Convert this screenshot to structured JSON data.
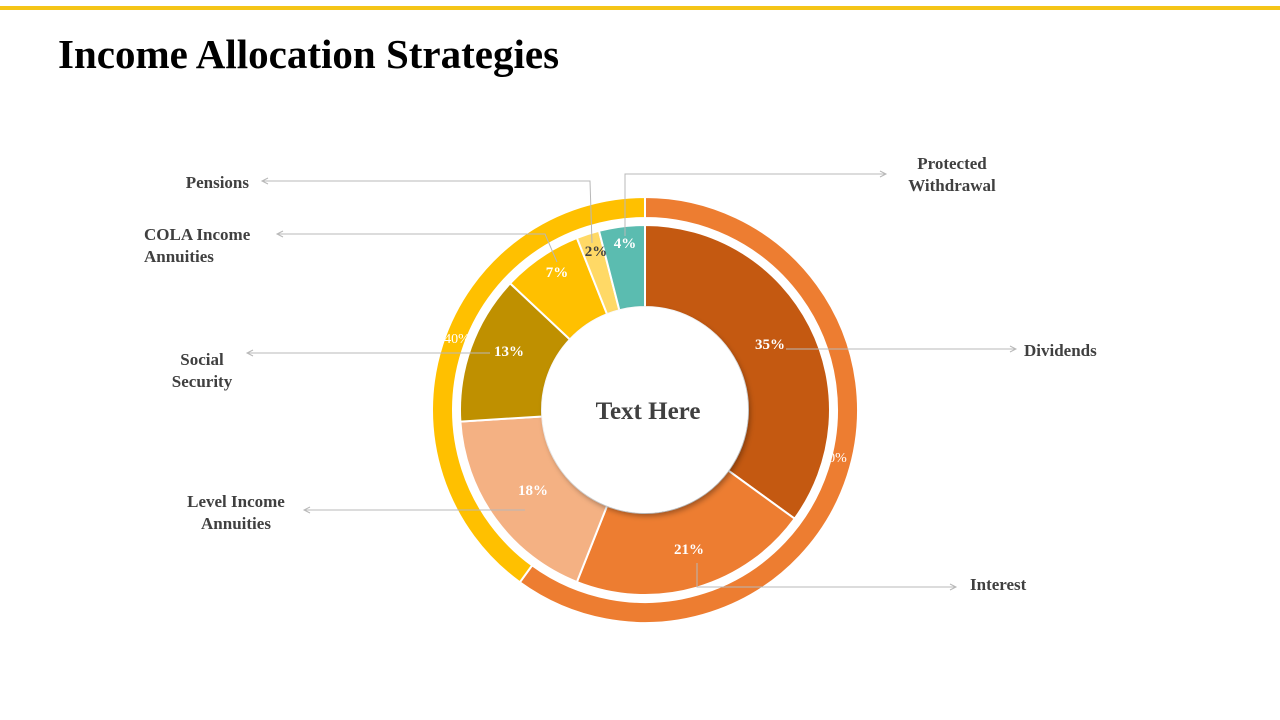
{
  "header": {
    "title": "Income Allocation Strategies",
    "accent_color": "#F5C518"
  },
  "chart_data": {
    "type": "doughnut",
    "center_text": "Text Here",
    "inner_series": [
      {
        "label": "Dividends",
        "value": 35,
        "value_label": "35%",
        "color": "#C45911"
      },
      {
        "label": "Interest",
        "value": 21,
        "value_label": "21%",
        "color": "#ED7D31"
      },
      {
        "label": "Level Income Annuities",
        "value": 18,
        "value_label": "18%",
        "color": "#F4B183"
      },
      {
        "label": "Social Security",
        "value": 13,
        "value_label": "13%",
        "color": "#BF9000"
      },
      {
        "label": "COLA Income Annuities",
        "value": 7,
        "value_label": "7%",
        "color": "#FFC000"
      },
      {
        "label": "Pensions",
        "value": 2,
        "value_label": "2%",
        "color": "#FFD966"
      },
      {
        "label": "Protected Withdrawal",
        "value": 4,
        "value_label": "4%",
        "color": "#5BBCB0"
      }
    ],
    "outer_series": [
      {
        "value": 60,
        "value_label": "60%",
        "color": "#ED7D31"
      },
      {
        "value": 40,
        "value_label": "40%",
        "color": "#FFC000"
      }
    ]
  }
}
